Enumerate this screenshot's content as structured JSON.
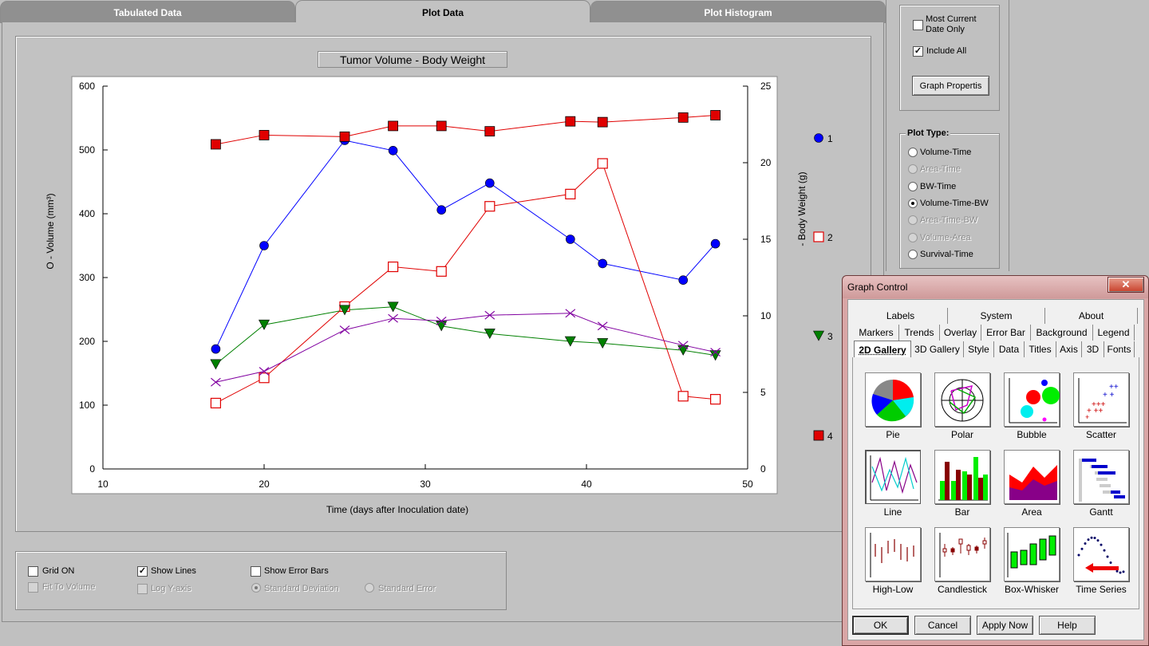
{
  "tabs": [
    {
      "label": "Tabulated Data",
      "active": false
    },
    {
      "label": "Plot Data",
      "active": true
    },
    {
      "label": "Plot Histogram",
      "active": false
    }
  ],
  "chart_data": {
    "type": "line",
    "title": "Tumor Volume - Body Weight",
    "xlabel": "Time (days after Inoculation date)",
    "ylabel_left": "O - Volume (mm³)",
    "ylabel_right": "- Body Weight (g)",
    "xlim": [
      10,
      50
    ],
    "ylim_left": [
      0,
      600
    ],
    "ylim_right": [
      0,
      25
    ],
    "x_ticks": [
      "10",
      "20",
      "30",
      "40",
      "50"
    ],
    "y_left_ticks": [
      "0",
      "100",
      "200",
      "300",
      "400",
      "500",
      "600"
    ],
    "y_right_ticks": [
      "0",
      "5",
      "10",
      "15",
      "20",
      "25"
    ],
    "grid": false,
    "legend_position": "right",
    "series": [
      {
        "name": "1",
        "axis": "left",
        "marker": "circle",
        "color": "#0000ff",
        "x": [
          17,
          20,
          25,
          28,
          31,
          34,
          39,
          41,
          46,
          48
        ],
        "y": [
          188,
          350,
          515,
          499,
          406,
          448,
          360,
          322,
          296,
          353
        ]
      },
      {
        "name": "2",
        "axis": "right",
        "marker": "square-open",
        "color": "#e00000",
        "x": [
          17,
          20,
          25,
          28,
          31,
          34,
          39,
          41,
          46,
          48
        ],
        "y": [
          4.3,
          5.95,
          10.6,
          13.2,
          12.9,
          17.15,
          17.95,
          19.95,
          4.75,
          4.55
        ]
      },
      {
        "name": "3",
        "axis": "left",
        "marker": "triangle-down",
        "color": "#008000",
        "x": [
          17,
          20,
          25,
          28,
          31,
          34,
          39,
          41,
          46,
          48
        ],
        "y": [
          164,
          226,
          249,
          254,
          224,
          212,
          200,
          197,
          186,
          178
        ]
      },
      {
        "name": "",
        "axis": "left",
        "marker": "x",
        "color": "#8000a0",
        "x": [
          17,
          20,
          25,
          28,
          31,
          34,
          39,
          41,
          46,
          48
        ],
        "y": [
          136,
          153,
          218,
          236,
          232,
          241,
          244,
          224,
          194,
          183
        ]
      },
      {
        "name": "4",
        "axis": "right",
        "marker": "square-filled",
        "color": "#e00000",
        "x": [
          17,
          20,
          25,
          28,
          31,
          34,
          39,
          41,
          46,
          48
        ],
        "y": [
          21.2,
          21.8,
          21.7,
          22.4,
          22.4,
          22.05,
          22.7,
          22.65,
          22.95,
          23.1
        ]
      }
    ]
  },
  "legend_items": [
    {
      "label": "1",
      "marker": "circle",
      "color": "#0000ff"
    },
    {
      "label": "2",
      "marker": "square-open",
      "color": "#e00000"
    },
    {
      "label": "3",
      "marker": "triangle-down",
      "color": "#008000"
    },
    {
      "label": "4",
      "marker": "square-filled",
      "color": "#e00000"
    }
  ],
  "bottom_options": {
    "grid_on": {
      "label": "Grid ON",
      "checked": false
    },
    "fit_to_volume": {
      "label": "Fit To Volume",
      "checked": false,
      "disabled": true
    },
    "show_lines": {
      "label": "Show Lines",
      "checked": true
    },
    "log_y_axis": {
      "label": "Log Y-axis",
      "checked": false,
      "disabled": true
    },
    "show_error_bars": {
      "label": "Show Error Bars",
      "checked": false
    },
    "standard_deviation": {
      "label": "Standard Deviation",
      "selected": true,
      "disabled": true
    },
    "standard_error": {
      "label": "Standard Error",
      "selected": false,
      "disabled": true
    }
  },
  "right_panel": {
    "most_current": {
      "label_line1": "Most Current",
      "label_line2": "Date Only",
      "checked": false
    },
    "include_all": {
      "label": "Include All",
      "checked": true
    },
    "graph_properties_button": "Graph Propertis",
    "plot_type_title": "Plot Type:",
    "plot_types": [
      {
        "label": "Volume-Time",
        "selected": false,
        "disabled": false
      },
      {
        "label": "Area-Time",
        "selected": false,
        "disabled": true
      },
      {
        "label": "BW-Time",
        "selected": false,
        "disabled": false
      },
      {
        "label": "Volume-Time-BW",
        "selected": true,
        "disabled": false
      },
      {
        "label": "Area-Time-BW",
        "selected": false,
        "disabled": true
      },
      {
        "label": "Volume-Area",
        "selected": false,
        "disabled": true
      },
      {
        "label": "Survival-Time",
        "selected": false,
        "disabled": false
      }
    ]
  },
  "dialog": {
    "title": "Graph Control",
    "close_glyph": "✕",
    "tab_row1": [
      "Labels",
      "System",
      "About"
    ],
    "tab_row2": [
      "Markers",
      "Trends",
      "Overlay",
      "Error Bar",
      "Background",
      "Legend"
    ],
    "tab_row3": [
      "2D Gallery",
      "3D Gallery",
      "Style",
      "Data",
      "Titles",
      "Axis",
      "3D",
      "Fonts"
    ],
    "active_tab": "2D Gallery",
    "gallery": [
      "Pie",
      "Polar",
      "Bubble",
      "Scatter",
      "Line",
      "Bar",
      "Area",
      "Gantt",
      "High-Low",
      "Candlestick",
      "Box-Whisker",
      "Time Series"
    ],
    "selected_gallery": "Line",
    "buttons": {
      "ok": "OK",
      "cancel": "Cancel",
      "apply": "Apply Now",
      "help": "Help"
    }
  }
}
